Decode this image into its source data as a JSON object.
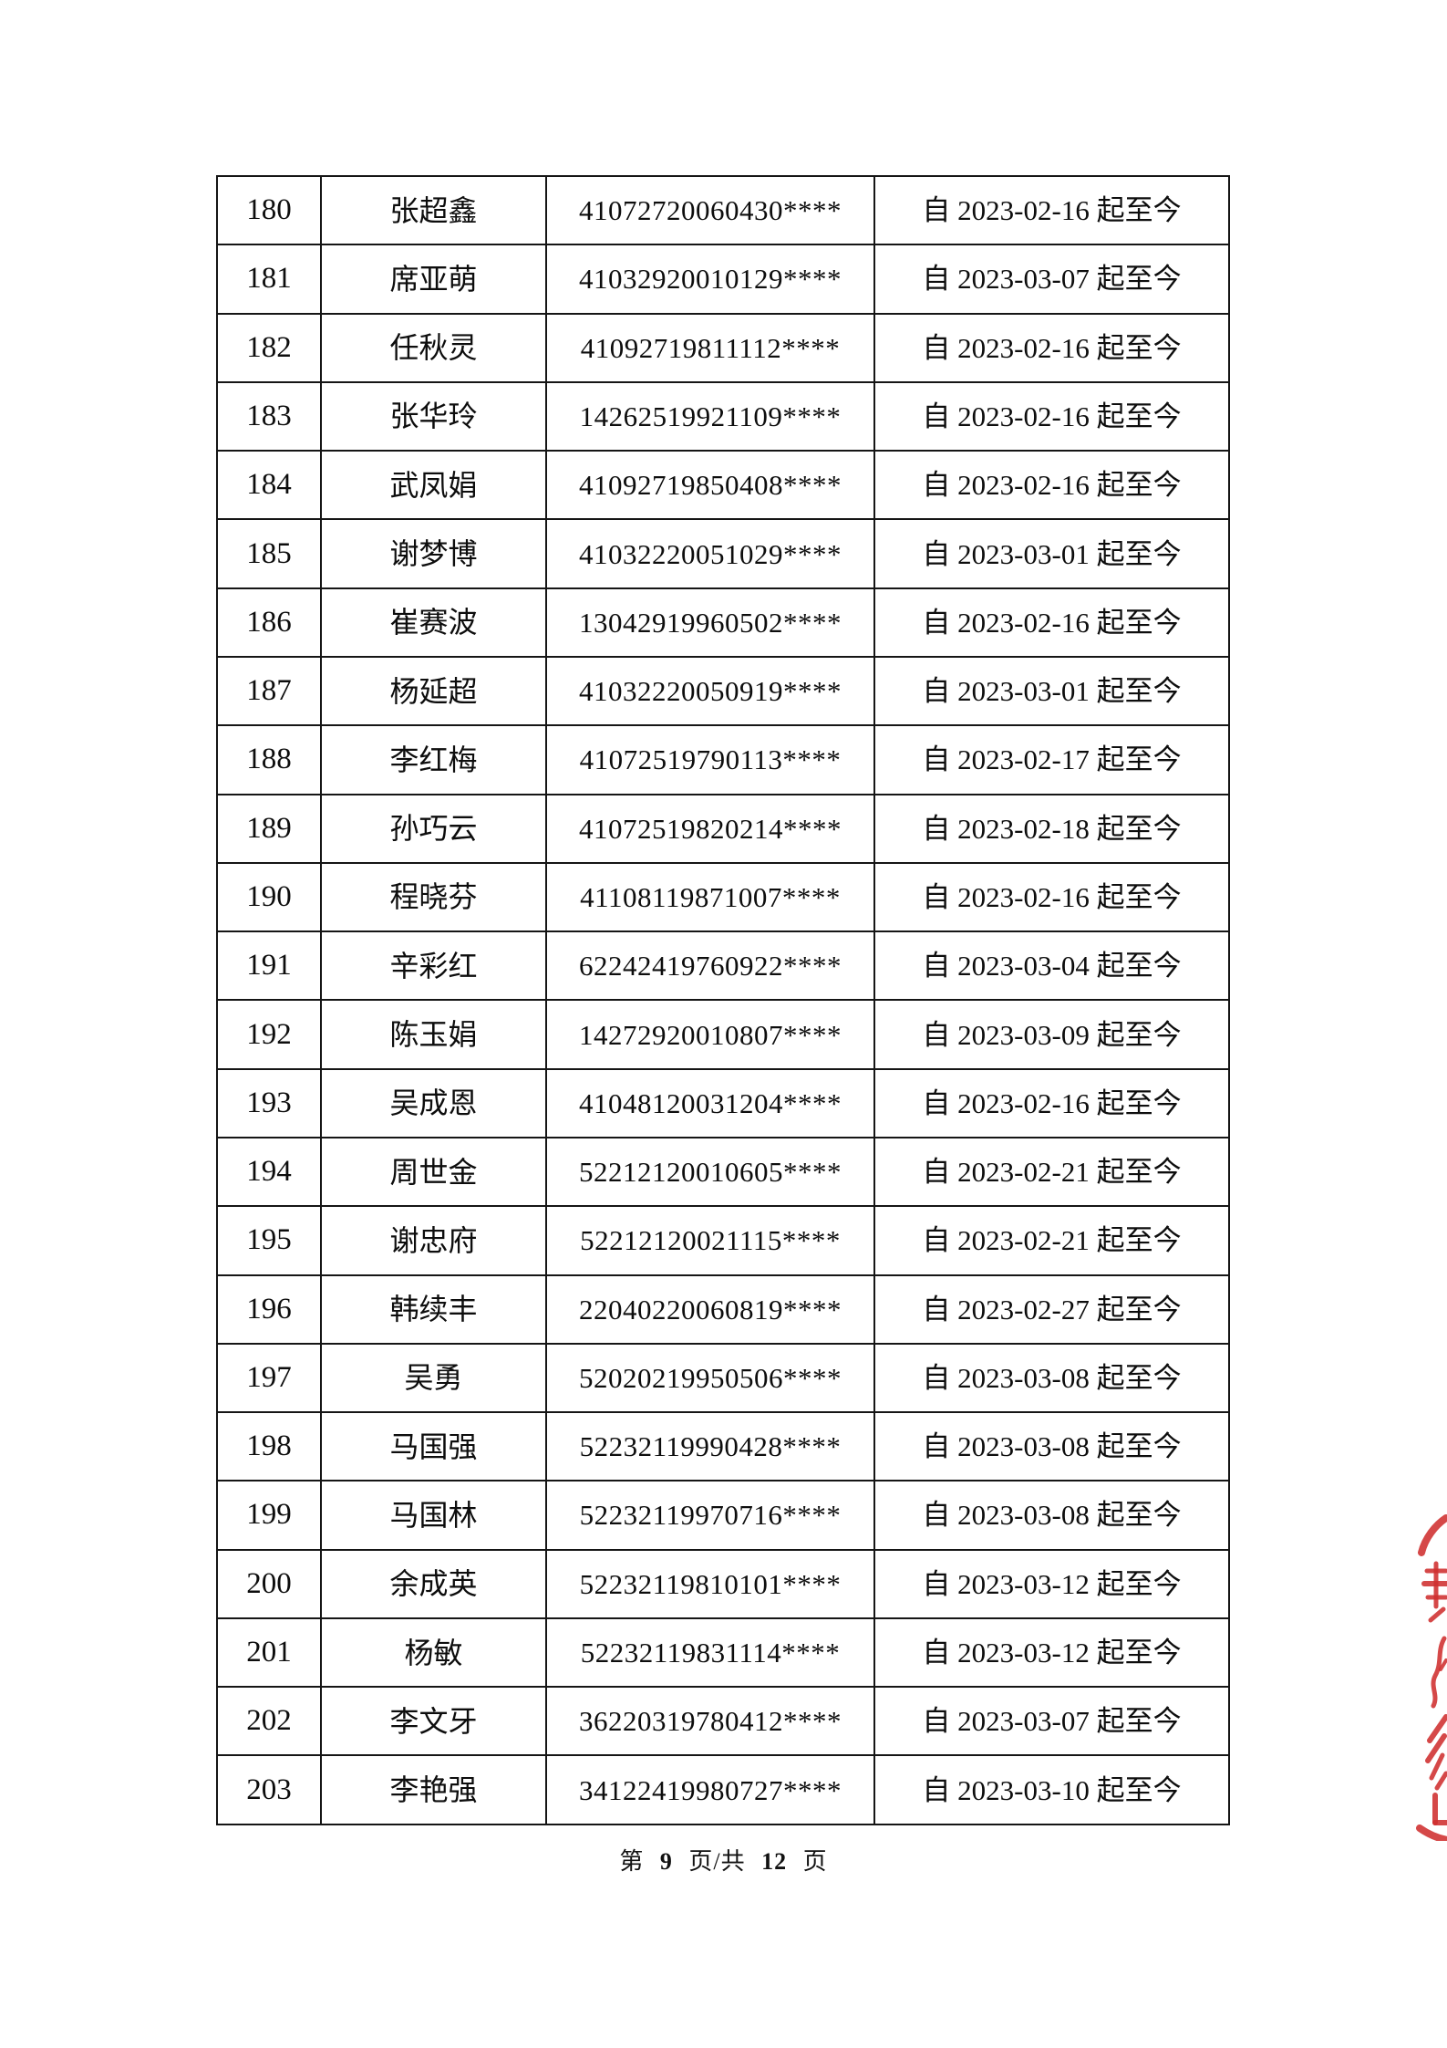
{
  "page": {
    "footer": {
      "prefix": "第",
      "page_number": "9",
      "middle": "页/共",
      "total_pages": "12",
      "suffix": "页"
    },
    "icons": {
      "stamp": "partial-red-official-seal"
    },
    "colors": {
      "stamp_red": "#cf2f2f",
      "table_border": "#151515",
      "text": "#0d0d0d"
    }
  },
  "table": {
    "rows": [
      {
        "num": "180",
        "name": "张超鑫",
        "id": "41072720060430****",
        "date": "自 2023-02-16 起至今"
      },
      {
        "num": "181",
        "name": "席亚萌",
        "id": "41032920010129****",
        "date": "自 2023-03-07 起至今"
      },
      {
        "num": "182",
        "name": "任秋灵",
        "id": "41092719811112****",
        "date": "自 2023-02-16 起至今"
      },
      {
        "num": "183",
        "name": "张华玲",
        "id": "14262519921109****",
        "date": "自 2023-02-16 起至今"
      },
      {
        "num": "184",
        "name": "武凤娟",
        "id": "41092719850408****",
        "date": "自 2023-02-16 起至今"
      },
      {
        "num": "185",
        "name": "谢梦博",
        "id": "41032220051029****",
        "date": "自 2023-03-01 起至今"
      },
      {
        "num": "186",
        "name": "崔赛波",
        "id": "13042919960502****",
        "date": "自 2023-02-16 起至今"
      },
      {
        "num": "187",
        "name": "杨延超",
        "id": "41032220050919****",
        "date": "自 2023-03-01 起至今"
      },
      {
        "num": "188",
        "name": "李红梅",
        "id": "41072519790113****",
        "date": "自 2023-02-17 起至今"
      },
      {
        "num": "189",
        "name": "孙巧云",
        "id": "41072519820214****",
        "date": "自 2023-02-18 起至今"
      },
      {
        "num": "190",
        "name": "程晓芬",
        "id": "41108119871007****",
        "date": "自 2023-02-16 起至今"
      },
      {
        "num": "191",
        "name": "辛彩红",
        "id": "62242419760922****",
        "date": "自 2023-03-04 起至今"
      },
      {
        "num": "192",
        "name": "陈玉娟",
        "id": "14272920010807****",
        "date": "自 2023-03-09 起至今"
      },
      {
        "num": "193",
        "name": "吴成恩",
        "id": "41048120031204****",
        "date": "自 2023-02-16 起至今"
      },
      {
        "num": "194",
        "name": "周世金",
        "id": "52212120010605****",
        "date": "自 2023-02-21 起至今"
      },
      {
        "num": "195",
        "name": "谢忠府",
        "id": "52212120021115****",
        "date": "自 2023-02-21 起至今"
      },
      {
        "num": "196",
        "name": "韩续丰",
        "id": "22040220060819****",
        "date": "自 2023-02-27 起至今"
      },
      {
        "num": "197",
        "name": "吴勇",
        "id": "52020219950506****",
        "date": "自 2023-03-08 起至今"
      },
      {
        "num": "198",
        "name": "马国强",
        "id": "52232119990428****",
        "date": "自 2023-03-08 起至今"
      },
      {
        "num": "199",
        "name": "马国林",
        "id": "52232119970716****",
        "date": "自 2023-03-08 起至今"
      },
      {
        "num": "200",
        "name": "余成英",
        "id": "52232119810101****",
        "date": "自 2023-03-12 起至今"
      },
      {
        "num": "201",
        "name": "杨敏",
        "id": "52232119831114****",
        "date": "自 2023-03-12 起至今"
      },
      {
        "num": "202",
        "name": "李文牙",
        "id": "36220319780412****",
        "date": "自 2023-03-07 起至今"
      },
      {
        "num": "203",
        "name": "李艳强",
        "id": "34122419980727****",
        "date": "自 2023-03-10 起至今"
      }
    ]
  }
}
